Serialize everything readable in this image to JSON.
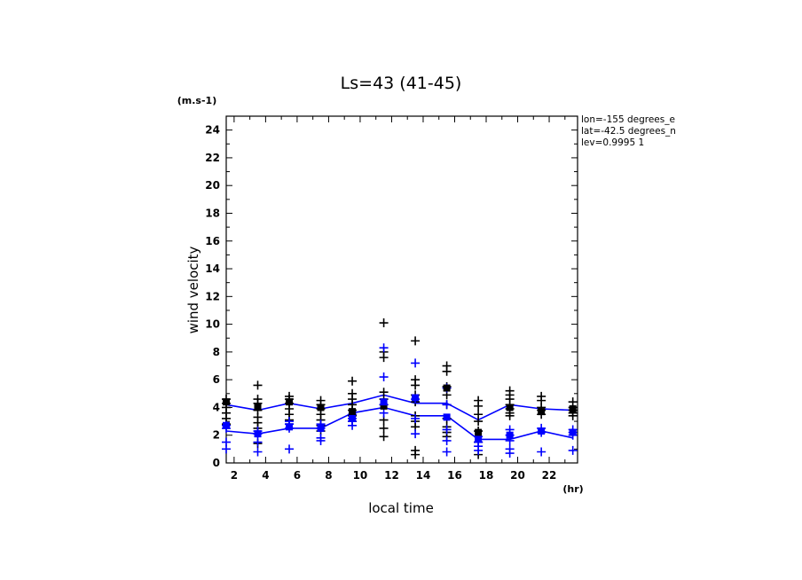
{
  "chart_data": {
    "type": "scatter",
    "title": "Ls=43 (41-45)",
    "xlabel": "local time",
    "x_unit": "(hr)",
    "ylabel": "wind velocity",
    "y_unit": "(m.s-1)",
    "xlim": [
      1.5,
      23.8
    ],
    "ylim": [
      0,
      25
    ],
    "x_ticks": [
      2,
      4,
      6,
      8,
      10,
      12,
      14,
      16,
      18,
      20,
      22
    ],
    "y_ticks": [
      0,
      2,
      4,
      6,
      8,
      10,
      12,
      14,
      16,
      18,
      20,
      22,
      24
    ],
    "annotations": [
      "lon=-155 degrees_e",
      "lat=-42.5 degrees_n",
      "lev=0.9995 1"
    ],
    "colors": {
      "black": "#000000",
      "blue": "#0000ff"
    },
    "series": [
      {
        "color": "blue",
        "style": "line",
        "x": [
          1.5,
          3.5,
          5.5,
          7.5,
          9.5,
          11.5,
          13.5,
          15.5,
          17.5,
          19.5,
          21.5,
          23.5
        ],
        "y": [
          4.2,
          3.8,
          4.3,
          3.9,
          4.3,
          4.9,
          4.3,
          4.3,
          3.1,
          4.2,
          3.9,
          3.8
        ]
      },
      {
        "color": "blue",
        "style": "line",
        "x": [
          1.5,
          3.5,
          5.5,
          7.5,
          9.5,
          11.5,
          13.5,
          15.5,
          17.5,
          19.5,
          21.5,
          23.5
        ],
        "y": [
          2.3,
          2.1,
          2.5,
          2.5,
          3.6,
          4.0,
          3.4,
          3.4,
          1.7,
          1.7,
          2.3,
          1.8
        ]
      },
      {
        "color": "black",
        "style": "plus",
        "x": [
          1.5,
          1.5,
          1.5,
          1.5,
          1.5,
          1.5,
          3.5,
          3.5,
          3.5,
          3.5,
          3.5,
          3.5,
          3.5,
          3.5,
          5.5,
          5.5,
          5.5,
          5.5,
          5.5,
          5.5,
          5.5,
          7.5,
          7.5,
          7.5,
          7.5,
          7.5,
          7.5,
          7.5,
          9.5,
          9.5,
          9.5,
          9.5,
          9.5,
          9.5,
          9.5,
          11.5,
          11.5,
          11.5,
          11.5,
          11.5,
          11.5,
          11.5,
          11.5,
          11.5,
          13.5,
          13.5,
          13.5,
          13.5,
          13.5,
          13.5,
          13.5,
          13.5,
          13.5,
          13.5,
          15.5,
          15.5,
          15.5,
          15.5,
          15.5,
          15.5,
          15.5,
          15.5,
          15.5,
          17.5,
          17.5,
          17.5,
          17.5,
          17.5,
          17.5,
          17.5,
          19.5,
          19.5,
          19.5,
          19.5,
          19.5,
          19.5,
          19.5,
          21.5,
          21.5,
          21.5,
          21.5,
          21.5,
          23.5,
          23.5,
          23.5,
          23.5,
          23.5
        ],
        "y": [
          4.6,
          4.3,
          4.0,
          3.6,
          3.2,
          2.8,
          5.6,
          4.6,
          4.3,
          3.8,
          3.3,
          2.9,
          2.5,
          1.4,
          4.8,
          4.6,
          4.3,
          3.9,
          3.5,
          3.1,
          2.8,
          4.5,
          4.2,
          3.9,
          3.5,
          3.1,
          2.7,
          2.3,
          5.9,
          5.0,
          4.6,
          4.2,
          3.8,
          3.4,
          3.0,
          10.1,
          8.0,
          7.6,
          5.1,
          4.6,
          4.2,
          3.1,
          2.5,
          1.9,
          8.8,
          6.0,
          5.6,
          4.9,
          4.4,
          3.4,
          3.0,
          2.6,
          0.9,
          0.6,
          7.0,
          6.6,
          5.5,
          4.9,
          4.2,
          3.2,
          2.6,
          2.2,
          1.9,
          4.5,
          4.1,
          3.5,
          3.0,
          2.3,
          1.5,
          0.6,
          5.2,
          4.9,
          4.6,
          4.2,
          3.9,
          3.6,
          3.4,
          4.8,
          4.5,
          4.0,
          3.8,
          3.5,
          4.4,
          4.0,
          3.8,
          3.6,
          3.4
        ]
      },
      {
        "color": "blue",
        "style": "plus",
        "x": [
          1.5,
          1.5,
          1.5,
          1.5,
          3.5,
          3.5,
          3.5,
          3.5,
          5.5,
          5.5,
          5.5,
          5.5,
          7.5,
          7.5,
          7.5,
          7.5,
          9.5,
          9.5,
          9.5,
          9.5,
          11.5,
          11.5,
          11.5,
          11.5,
          13.5,
          13.5,
          13.5,
          13.5,
          15.5,
          15.5,
          15.5,
          15.5,
          15.5,
          17.5,
          17.5,
          17.5,
          17.5,
          19.5,
          19.5,
          19.5,
          19.5,
          19.5,
          21.5,
          21.5,
          21.5,
          23.5,
          23.5,
          23.5,
          23.5
        ],
        "y": [
          2.7,
          2.5,
          1.5,
          1.0,
          2.3,
          2.1,
          1.5,
          0.8,
          3.0,
          2.8,
          2.5,
          1.0,
          2.8,
          2.5,
          1.8,
          1.6,
          3.5,
          3.2,
          3.0,
          2.7,
          8.3,
          6.2,
          4.2,
          3.6,
          7.2,
          4.6,
          3.2,
          2.1,
          5.4,
          4.2,
          2.4,
          1.6,
          0.8,
          1.9,
          1.5,
          1.2,
          0.9,
          2.4,
          2.0,
          1.6,
          1.0,
          0.7,
          2.5,
          2.2,
          0.8,
          2.4,
          2.2,
          2.0,
          0.9
        ]
      },
      {
        "color": "black",
        "style": "square",
        "x": [
          1.5,
          3.5,
          5.5,
          7.5,
          9.5,
          11.5,
          13.5,
          15.5,
          17.5,
          19.5,
          21.5,
          23.5
        ],
        "y": [
          4.4,
          4.0,
          4.4,
          4.0,
          3.7,
          4.1,
          4.7,
          5.4,
          2.2,
          4.0,
          3.7,
          3.9
        ]
      },
      {
        "color": "blue",
        "style": "square",
        "x": [
          1.5,
          3.5,
          5.5,
          7.5,
          9.5,
          11.5,
          13.5,
          15.5,
          17.5,
          19.5,
          21.5,
          23.5
        ],
        "y": [
          2.7,
          2.1,
          2.6,
          2.5,
          3.2,
          4.4,
          4.7,
          3.3,
          1.7,
          2.0,
          2.3,
          2.2
        ]
      }
    ]
  }
}
